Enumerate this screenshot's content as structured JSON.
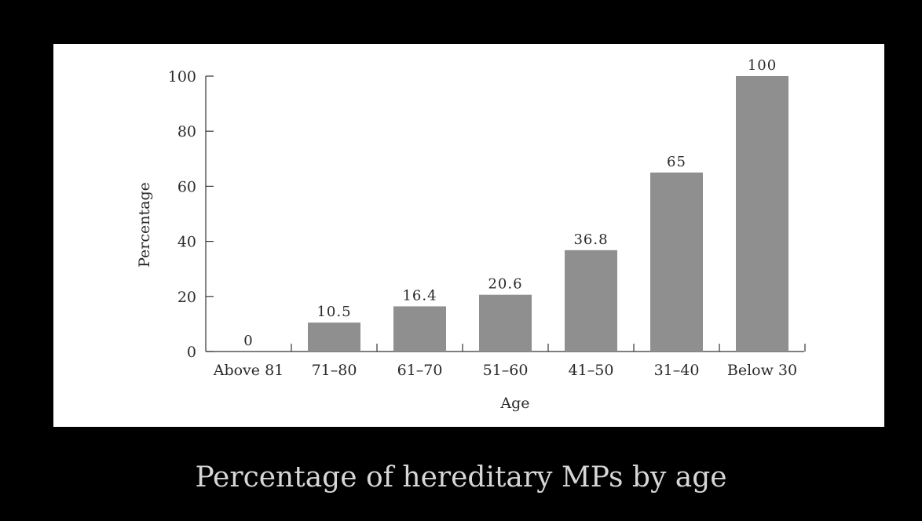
{
  "caption": "Percentage of hereditary MPs by age",
  "colors": {
    "background": "#000000",
    "panel": "#ffffff",
    "bar": "#8f8f8f",
    "text": "#2a2a2a",
    "caption": "#d6d6d6"
  },
  "chart_data": {
    "type": "bar",
    "categories": [
      "Above 81",
      "71–80",
      "61–70",
      "51–60",
      "41–50",
      "31–40",
      "Below 30"
    ],
    "values": [
      0,
      10.5,
      16.4,
      20.6,
      36.8,
      65,
      100
    ],
    "data_labels": [
      "0",
      "10.5",
      "16.4",
      "20.6",
      "36.8",
      "65",
      "100"
    ],
    "xlabel": "Age",
    "ylabel": "Percentage",
    "ylim": [
      0,
      100
    ],
    "yticks": [
      0,
      20,
      40,
      60,
      80,
      100
    ],
    "ytick_labels": [
      "0",
      "20",
      "40",
      "60",
      "80",
      "100"
    ],
    "grid": false,
    "legend": "none"
  }
}
